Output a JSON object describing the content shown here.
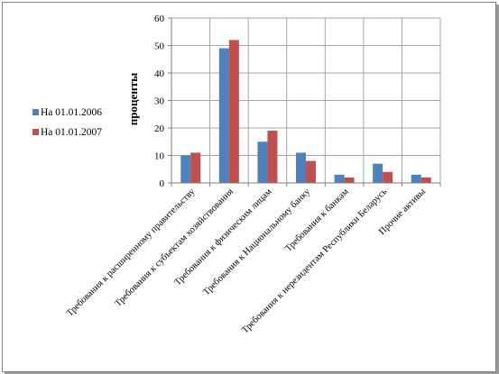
{
  "chart_data": {
    "type": "bar",
    "title": "",
    "xlabel": "",
    "ylabel": "проценты",
    "ylim": [
      0,
      60
    ],
    "yticks": [
      0,
      10,
      20,
      30,
      40,
      50,
      60
    ],
    "grid": true,
    "legend_position": "left",
    "categories": [
      "Требования к расширенному правительству",
      "Требования к субъектам хозяйствования",
      "Требования к физическим лицам",
      "Требования к Национальному банку",
      "Требования к банкам",
      "Требования к нерезидентам Республики Беларусь",
      "Прочие активы"
    ],
    "series": [
      {
        "name": "На 01.01.2006",
        "color": "#4f81bd",
        "values": [
          10,
          49,
          15,
          11,
          3,
          7,
          3
        ]
      },
      {
        "name": "На 01.01.2007",
        "color": "#c0504d",
        "values": [
          11,
          52,
          19,
          8,
          2,
          4,
          2
        ]
      }
    ]
  }
}
